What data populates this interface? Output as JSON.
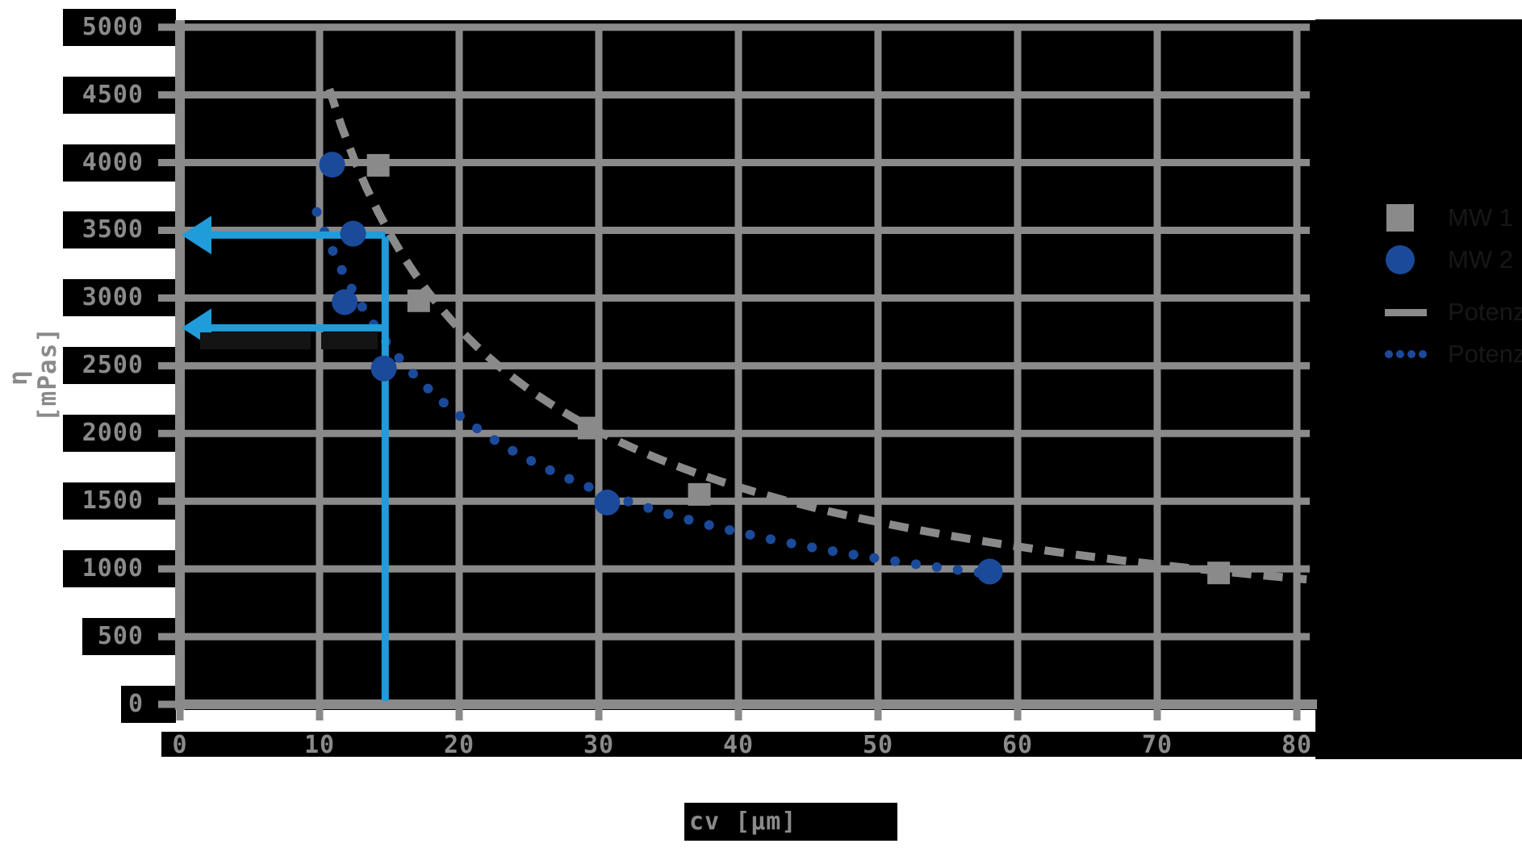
{
  "chart_data": {
    "type": "scatter",
    "title": "",
    "xlabel": "cv [µm]",
    "ylabel": "η [mPas]",
    "x_ticks": [
      0,
      10,
      20,
      30,
      40,
      50,
      60,
      70,
      80
    ],
    "y_ticks": [
      5000,
      4500,
      4000,
      3500,
      3000,
      2500,
      2000,
      1500,
      1000,
      500,
      0
    ],
    "xlim": [
      0,
      82
    ],
    "ylim": [
      0,
      5000
    ],
    "grid": true,
    "legend_position": "right",
    "series": [
      {
        "name": "MW 1",
        "marker": "square",
        "color": "#8a8a8a",
        "points": [
          [
            14.2,
            3980
          ],
          [
            17.1,
            2980
          ],
          [
            29.3,
            2040
          ],
          [
            37.2,
            1550
          ],
          [
            74.4,
            970
          ]
        ]
      },
      {
        "name": "MW 2",
        "marker": "circle",
        "color": "#1b4a9b",
        "points": [
          [
            10.9,
            3985
          ],
          [
            12.4,
            3475
          ],
          [
            11.8,
            2970
          ],
          [
            14.6,
            2480
          ],
          [
            30.6,
            1490
          ],
          [
            58.0,
            980
          ]
        ]
      }
    ],
    "fits": [
      {
        "name": "Potenz",
        "series": "MW 1",
        "style": "dashed",
        "color": "#8a8a8a",
        "a": 29480,
        "b": -0.789,
        "x_range": [
          10.7,
          80.7
        ]
      },
      {
        "name": "Potenz",
        "series": "MW 2",
        "style": "dotted",
        "color": "#1b4a9b",
        "a": 20000,
        "b": -0.747,
        "x_range": [
          9.8,
          58.4
        ]
      }
    ],
    "annotations": {
      "color": "#1f9cd9",
      "vline_x": 14.7,
      "arrows": [
        {
          "y_value": 3465
        },
        {
          "y_value": 2780
        }
      ],
      "redacted_labels": [
        {
          "text": ""
        },
        {
          "text": ""
        }
      ]
    },
    "legend": [
      {
        "label": "MW 1",
        "swatch": "square",
        "color": "#8a8a8a"
      },
      {
        "label": "MW 2",
        "swatch": "circle",
        "color": "#1b4a9b"
      },
      {
        "label": "Potenz",
        "swatch": "line-solid",
        "color": "#8a8a8a"
      },
      {
        "label": "Potenz",
        "swatch": "line-dotted",
        "color": "#1b4a9b"
      }
    ]
  },
  "colors": {
    "grid": "#8a8a8a",
    "axis": "#8a8a8a",
    "tick_label": "#8a8a8a",
    "plot_background": "#000000",
    "page_background": "#ffffff",
    "legend_text": "#171717",
    "cyan_annotation": "#1f9cd9",
    "blue_series": "#1b4a9b"
  }
}
